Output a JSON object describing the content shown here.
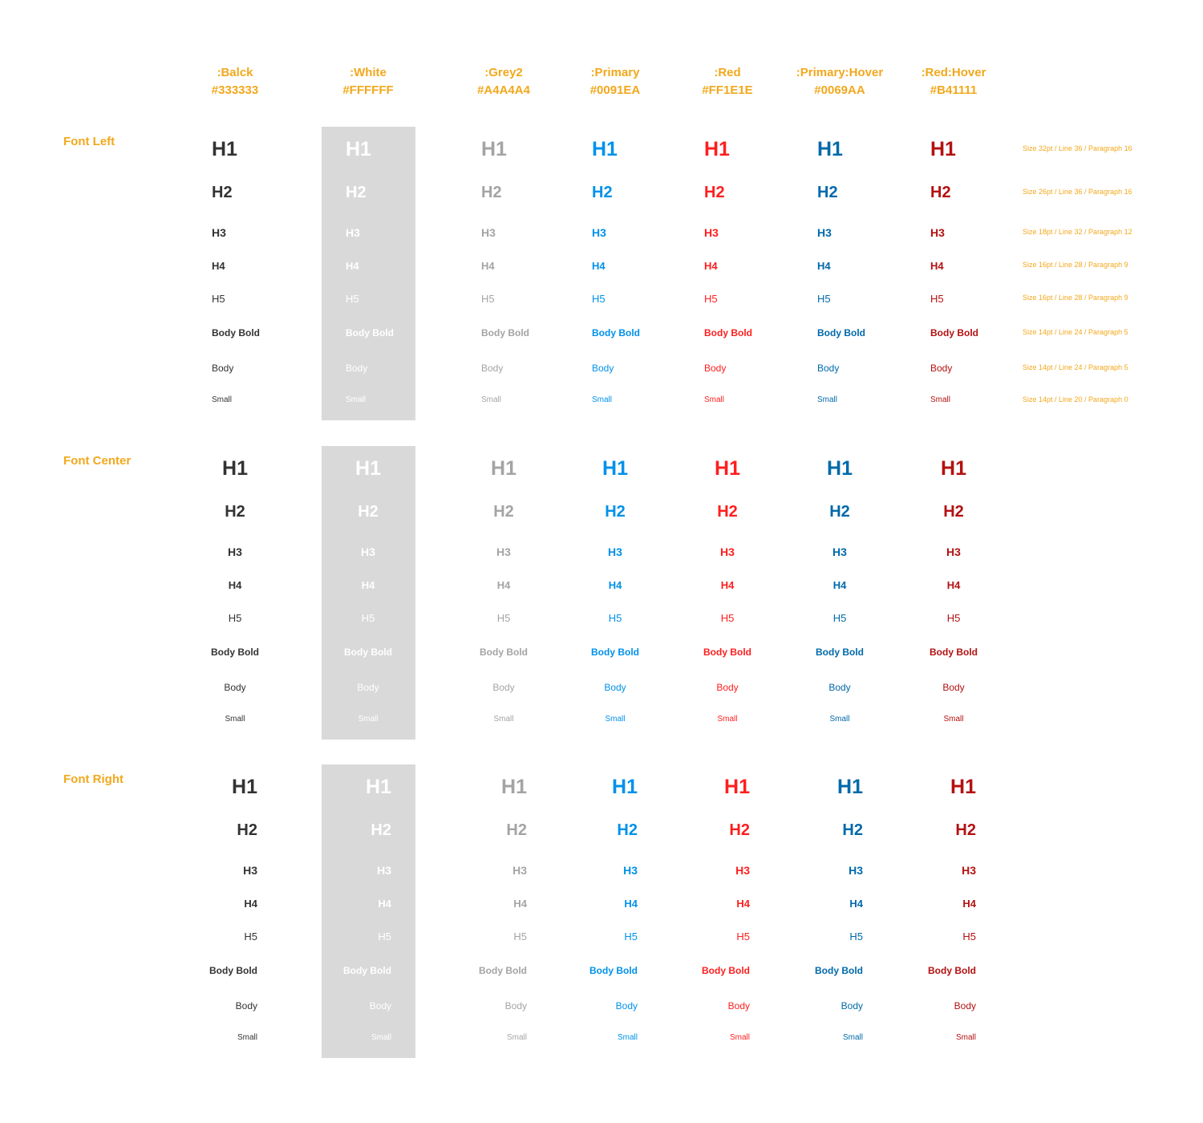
{
  "columns": [
    {
      "name": ":Balck",
      "hex": "#333333",
      "color": "#333333"
    },
    {
      "name": ":White",
      "hex": "#FFFFFF",
      "color": "#FFFFFF"
    },
    {
      "name": ":Grey2",
      "hex": "#A4A4A4",
      "color": "#A4A4A4"
    },
    {
      "name": ":Primary",
      "hex": "#0091EA",
      "color": "#0091EA"
    },
    {
      "name": ":Red",
      "hex": "#FF1E1E",
      "color": "#FF1E1E"
    },
    {
      "name": ":Primary:Hover",
      "hex": "#0069AA",
      "color": "#0069AA"
    },
    {
      "name": ":Red:Hover",
      "hex": "#B41111",
      "color": "#B41111"
    }
  ],
  "header_color": "#F2A81D",
  "white_column_bg": "#D9D9D9",
  "styles": [
    "H1",
    "H2",
    "H3",
    "H4",
    "H5",
    "Body Bold",
    "Body",
    "Small"
  ],
  "sections": [
    {
      "label": "Font Left",
      "align": "left"
    },
    {
      "label": "Font Center",
      "align": "center"
    },
    {
      "label": "Font Right",
      "align": "right"
    }
  ],
  "specs": [
    "Size 32pt / Line 36 / Paragraph 16",
    "Size 26pt / Line 36 / Paragraph 16",
    "Size 18pt / Line 32 / Paragraph 12",
    "Size 16pt / Line 28 / Paragraph 9",
    "Size 16pt / Line 28 / Paragraph 9",
    "Size 14pt / Line 24 / Paragraph 5",
    "Size 14pt / Line 24 / Paragraph 5",
    "Size 14pt / Line 20 / Paragraph 0"
  ]
}
